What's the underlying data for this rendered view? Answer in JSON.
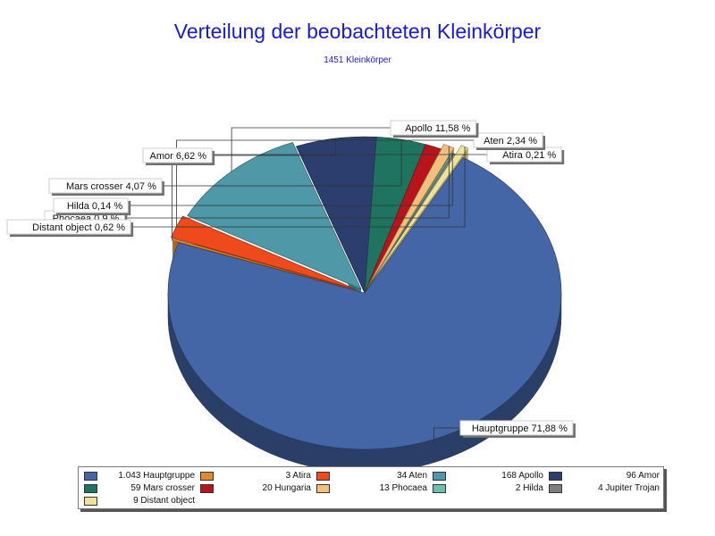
{
  "chart_data": {
    "type": "pie",
    "title": "Verteilung der beobachteten Kleinkörper",
    "subtitle": "1451 Kleinkörper",
    "slices": [
      {
        "name": "Hauptgruppe",
        "value": 1043,
        "legend_text": "1.043 Hauptgruppe",
        "label": "Hauptgruppe 71,88 %",
        "color": "#4466a6"
      },
      {
        "name": "Atira",
        "value": 3,
        "legend_text": "3 Atira",
        "label": "Atira 0,21 %",
        "color": "#e08a2e"
      },
      {
        "name": "Aten",
        "value": 34,
        "legend_text": "34 Aten",
        "label": "Aten 2,34 %",
        "color": "#ef4a1c"
      },
      {
        "name": "Apollo",
        "value": 168,
        "legend_text": "168 Apollo",
        "label": "Apollo 11,58 %",
        "color": "#4e98a8"
      },
      {
        "name": "Amor",
        "value": 96,
        "legend_text": "96 Amor",
        "label": "Amor 6,62 %",
        "color": "#2c3e6e"
      },
      {
        "name": "Mars crosser",
        "value": 59,
        "legend_text": "59 Mars crosser",
        "label": "Mars crosser 4,07 %",
        "color": "#1f7460"
      },
      {
        "name": "Hungaria",
        "value": 20,
        "legend_text": "20 Hungaria",
        "label": "",
        "color": "#b8141c"
      },
      {
        "name": "Phocaea",
        "value": 13,
        "legend_text": "13 Phocaea",
        "label": "Phocaea 0,9 %",
        "color": "#f2c07a"
      },
      {
        "name": "Hilda",
        "value": 2,
        "legend_text": "2 Hilda",
        "label": "Hilda 0,14 %",
        "color": "#6dbfae"
      },
      {
        "name": "Jupiter Trojan",
        "value": 4,
        "legend_text": "4 Jupiter Trojan",
        "label": "",
        "color": "#7f7f7f"
      },
      {
        "name": "Distant object",
        "value": 9,
        "legend_text": "9 Distant object",
        "label": "Distant object 0,62 %",
        "color": "#f1e29a"
      }
    ],
    "legend_position": "bottom",
    "style": "3d-exploded"
  }
}
